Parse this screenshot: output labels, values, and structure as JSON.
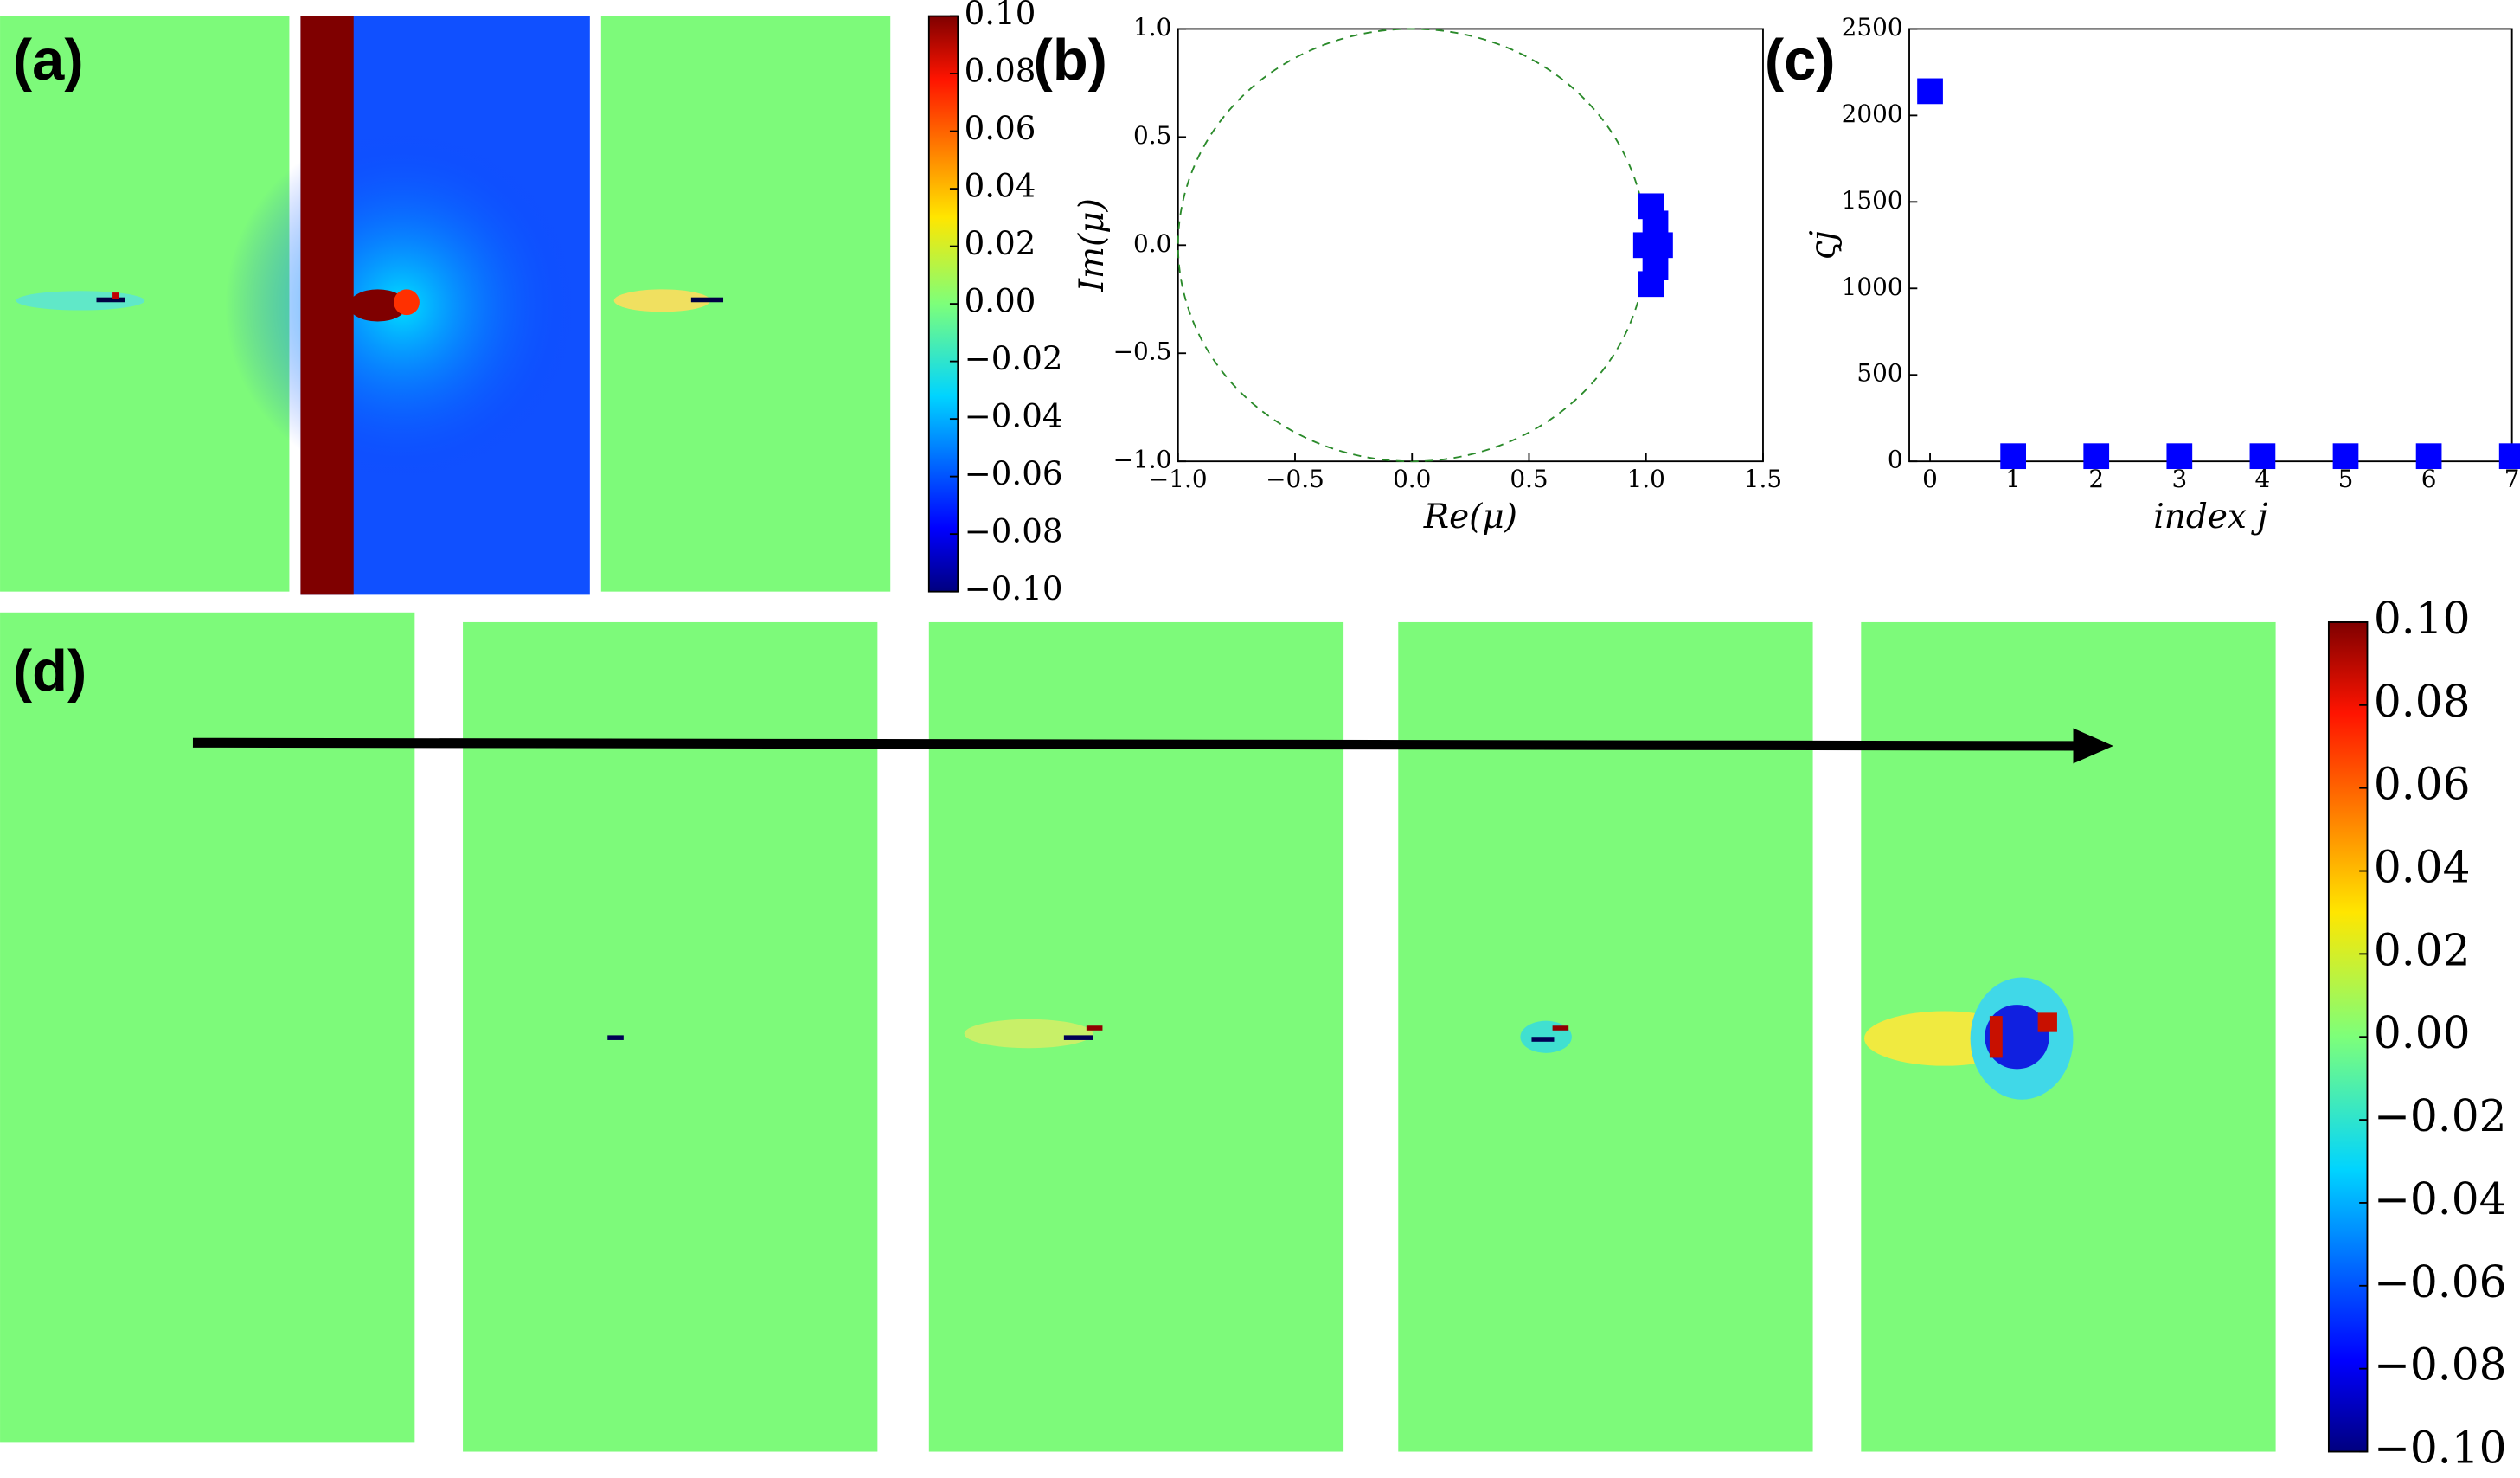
{
  "panel_labels": [
    "(a)",
    "(b)",
    "(c)",
    "(d)"
  ],
  "chart_data": [
    {
      "type": "colorbar",
      "ylim": [
        -0.1,
        0.1
      ],
      "yticks": [
        {
          "value": 0.1,
          "label": "0.10"
        },
        {
          "value": 0.08,
          "label": "0.08"
        },
        {
          "value": 0.06,
          "label": "0.06"
        },
        {
          "value": 0.04,
          "label": "0.04"
        },
        {
          "value": 0.02,
          "label": "0.02"
        },
        {
          "value": 0,
          "label": "0.00"
        },
        {
          "value": -0.02,
          "label": "−0.02"
        },
        {
          "value": -0.04,
          "label": "−0.04"
        },
        {
          "value": -0.06,
          "label": "−0.06"
        },
        {
          "value": -0.08,
          "label": "−0.08"
        },
        {
          "value": -0.1,
          "label": "−0.10"
        }
      ]
    },
    {
      "type": "scatter",
      "xlabel": "Re(μ)",
      "ylabel": "Im(μ)",
      "color": "#0000ff",
      "unit_circle": true,
      "xlim": [
        -1,
        1.5
      ],
      "ylim": [
        -1,
        1
      ],
      "xticks": [
        {
          "value": -1,
          "label": "−1.0"
        },
        {
          "value": -0.5,
          "label": "−0.5"
        },
        {
          "value": 0,
          "label": "0.0"
        },
        0.5,
        {
          "value": 1,
          "label": "1.0"
        },
        1.5
      ],
      "yticks": [
        {
          "value": 1,
          "label": "1.0"
        },
        0.5,
        {
          "value": 0,
          "label": "0.0"
        },
        {
          "value": -0.5,
          "label": "−0.5"
        },
        {
          "value": -1,
          "label": "−1.0"
        }
      ],
      "x": [
        1.02,
        1.04,
        1.0,
        1.06,
        1.04,
        1.02
      ],
      "y": [
        0.18,
        0.1,
        0.0,
        0.0,
        -0.1,
        -0.18
      ]
    },
    {
      "type": "scatter",
      "xlabel": "index j",
      "ylabel": "ςj",
      "color": "#0000ff",
      "xlim": [
        -0.25,
        7
      ],
      "ylim": [
        0,
        2500
      ],
      "xticks": [
        0,
        1,
        2,
        3,
        4,
        5,
        6,
        7
      ],
      "yticks": [
        0,
        500,
        1000,
        1500,
        2000,
        2500
      ],
      "x": [
        0,
        1,
        2,
        3,
        4,
        5,
        6,
        7
      ],
      "y": [
        2140,
        30,
        30,
        30,
        30,
        30,
        30,
        30
      ]
    },
    {
      "type": "colorbar",
      "ylim": [
        -0.1,
        0.1
      ],
      "yticks": [
        {
          "value": 0.1,
          "label": "0.10"
        },
        {
          "value": 0.08,
          "label": "0.08"
        },
        {
          "value": 0.06,
          "label": "0.06"
        },
        {
          "value": 0.04,
          "label": "0.04"
        },
        {
          "value": 0.02,
          "label": "0.02"
        },
        {
          "value": 0,
          "label": "0.00"
        },
        {
          "value": -0.02,
          "label": "−0.02"
        },
        {
          "value": -0.04,
          "label": "−0.04"
        },
        {
          "value": -0.06,
          "label": "−0.06"
        },
        {
          "value": -0.08,
          "label": "−0.08"
        },
        {
          "value": -0.1,
          "label": "−0.10"
        }
      ]
    }
  ]
}
